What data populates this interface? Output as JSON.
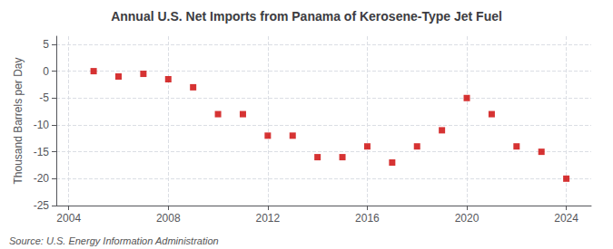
{
  "chart_data": {
    "type": "scatter",
    "title": "Annual U.S. Net Imports from Panama of Kerosene-Type Jet Fuel",
    "ylabel": "Thousand Barrels per Day",
    "annotations": [
      "Source: U.S. Energy Information Administration"
    ],
    "x": [
      2005,
      2006,
      2007,
      2008,
      2009,
      2010,
      2011,
      2012,
      2013,
      2014,
      2015,
      2016,
      2017,
      2018,
      2019,
      2020,
      2021,
      2022,
      2023,
      2024
    ],
    "values": [
      0,
      -1,
      -0.5,
      -1.5,
      -3,
      -8,
      -8,
      -12,
      -12,
      -16,
      -16,
      -14,
      -17,
      -14,
      -11,
      -5,
      -8,
      -14,
      -15,
      -20
    ],
    "color": "#cc0000",
    "marker": "square",
    "xlim": [
      2003.5,
      2025
    ],
    "ylim": [
      -25,
      6.5
    ],
    "xticks": [
      2004,
      2008,
      2012,
      2016,
      2020,
      2024
    ],
    "yticks": [
      5,
      0,
      -5,
      -10,
      -15,
      -20,
      -25
    ],
    "grid": true
  }
}
